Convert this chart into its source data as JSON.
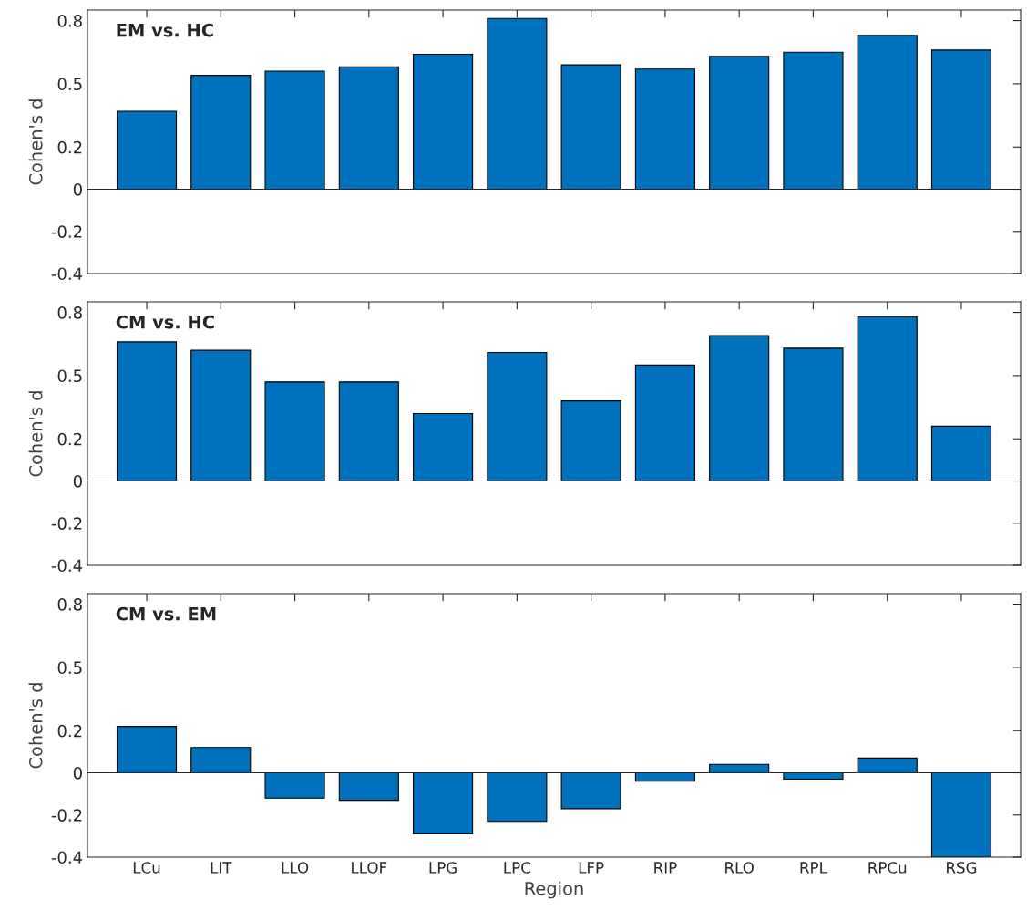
{
  "chart_data": [
    {
      "type": "bar",
      "title": "EM vs. HC",
      "ylabel": "Cohen's d",
      "categories": [
        null,
        null,
        null,
        null,
        null,
        null,
        null,
        null,
        null,
        null,
        null,
        null
      ],
      "tick_labels": "y",
      "series": [
        {
          "color": "#0072bd",
          "values": [
            0.37,
            0.54,
            0.56,
            0.58,
            0.64,
            0.81,
            0.59,
            0.57,
            0.63,
            0.65,
            0.73,
            0.66
          ]
        }
      ],
      "ylim": [
        -0.4,
        0.85
      ],
      "yticks": [
        -0.4,
        -0.2,
        0,
        0.2,
        0.5,
        0.8
      ]
    },
    {
      "type": "bar",
      "title": "CM vs. HC",
      "ylabel": "Cohen's d",
      "categories": [
        null,
        null,
        null,
        null,
        null,
        null,
        null,
        null,
        null,
        null,
        null,
        null
      ],
      "tick_labels": "y",
      "series": [
        {
          "color": "#0072bd",
          "values": [
            0.66,
            0.62,
            0.47,
            0.47,
            0.32,
            0.61,
            0.38,
            0.55,
            0.69,
            0.63,
            0.78,
            0.26
          ]
        }
      ],
      "ylim": [
        -0.4,
        0.85
      ],
      "yticks": [
        -0.4,
        -0.2,
        0,
        0.2,
        0.5,
        0.8
      ]
    },
    {
      "type": "bar",
      "title": "CM vs. EM",
      "ylabel": "Cohen's d",
      "xlabel": "Region",
      "categories": [
        "LCu",
        "LIT",
        "LLO",
        "LLOF",
        "LPG",
        "LPC",
        "LFP",
        "RIP",
        "RLO",
        "RPL",
        "RPCu",
        "RSG"
      ],
      "series": [
        {
          "color": "#0072bd",
          "values": [
            0.22,
            0.12,
            -0.12,
            -0.13,
            -0.29,
            -0.23,
            -0.17,
            -0.04,
            0.04,
            -0.03,
            0.07,
            -0.4
          ]
        }
      ],
      "ylim": [
        -0.4,
        0.85
      ],
      "yticks": [
        -0.4,
        -0.2,
        0,
        0.2,
        0.5,
        0.8
      ]
    }
  ]
}
